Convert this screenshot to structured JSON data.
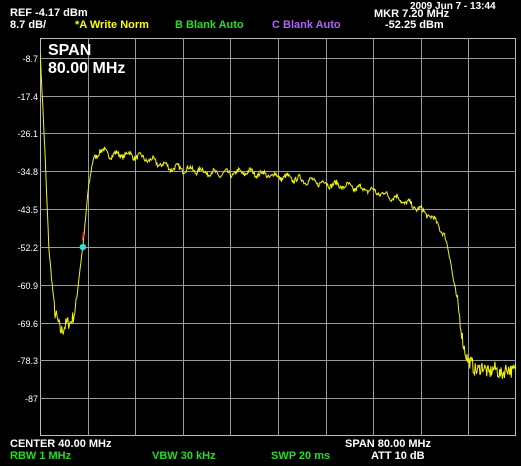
{
  "header": {
    "ref": "REF  -4.17 dBm",
    "scale": "8.7 dB/",
    "trace_a": "*A Write Norm",
    "trace_b": "B Blank Auto",
    "trace_c": "C Blank Auto",
    "marker_freq": "MKR 7.20 MHz",
    "marker_level": "-52.25 dBm",
    "datetime": "2009 Jun 7 - 13:44"
  },
  "plot": {
    "span_title": "SPAN",
    "span_value": "80.00 MHz",
    "y_ticks": [
      "-8.7",
      "-17.4",
      "-26.1",
      "-34.8",
      "-43.5",
      "-52.2",
      "-60.9",
      "-69.6",
      "-78.3",
      "-87"
    ]
  },
  "footer": {
    "center": "CENTER 40.00 MHz",
    "span": "SPAN 80.00 MHz",
    "rbw": "RBW  1 MHz",
    "vbw": "VBW  30 kHz",
    "swp": "SWP  20 ms",
    "att": "ATT 10 dB"
  },
  "colors": {
    "trace": "#f4f40a",
    "trace_a_label": "#ffff00",
    "trace_b_label": "#22dd22",
    "trace_c_label": "#b060ff",
    "rbw_label": "#22dd22",
    "marker": "#33dddd",
    "marker_flag": "#ff3030"
  },
  "chart_data": {
    "type": "line",
    "xlabel": "",
    "ylabel": "",
    "xlim": [
      0,
      80
    ],
    "ylim": [
      -95.7,
      -4.17
    ],
    "y_ticks": [
      -8.7,
      -17.4,
      -26.1,
      -34.8,
      -43.5,
      -52.2,
      -60.9,
      -69.6,
      -78.3,
      -87
    ],
    "grid": true,
    "series": [
      {
        "x": [
          0,
          0.8,
          1.5,
          2.5,
          3.5,
          5,
          6,
          6.8,
          7.2,
          8,
          9,
          10,
          12,
          15,
          18,
          22,
          26,
          30,
          35,
          40,
          45,
          50,
          55,
          60,
          63,
          65,
          67,
          68,
          69,
          70,
          71,
          72,
          73,
          75,
          78,
          80
        ],
        "y": [
          -7,
          -30,
          -52,
          -68,
          -71,
          -70,
          -66,
          -57,
          -52.25,
          -40,
          -32,
          -30,
          -31,
          -31,
          -32,
          -34,
          -34.5,
          -35.5,
          -35,
          -36,
          -37,
          -38,
          -39,
          -41,
          -43,
          -44.5,
          -47,
          -50,
          -55,
          -64,
          -73,
          -79,
          -80,
          -80.5,
          -81,
          -80
        ]
      }
    ],
    "marker": {
      "x": 7.2,
      "y": -52.25
    }
  }
}
